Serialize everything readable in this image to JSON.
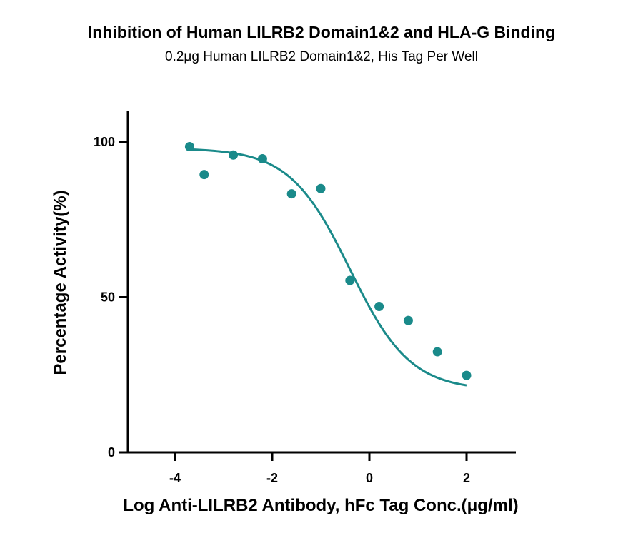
{
  "chart_data": {
    "type": "scatter",
    "title": "Inhibition of Human LILRB2 Domain1&2 and HLA-G Binding",
    "subtitle": "0.2μg Human LILRB2 Domain1&2, His Tag Per Well",
    "xlabel": "Log Anti-LILRB2 Antibody, hFc Tag Conc.(μg/ml)",
    "ylabel": "Percentage Activity(%)",
    "xlim": [
      -5,
      3
    ],
    "ylim": [
      0,
      110
    ],
    "x_ticks": [
      -4,
      -2,
      0,
      2
    ],
    "x_tick_labels": [
      "-4",
      "-2",
      "0",
      "2"
    ],
    "y_ticks": [
      0,
      50,
      100
    ],
    "y_tick_labels": [
      "0",
      "50",
      "100"
    ],
    "grid": false,
    "color": "#1a8a8a",
    "series": [
      {
        "points": [
          {
            "x": -3.7,
            "y": 98.5
          },
          {
            "x": -3.4,
            "y": 89.5
          },
          {
            "x": -2.8,
            "y": 95.8
          },
          {
            "x": -2.2,
            "y": 94.6
          },
          {
            "x": -1.6,
            "y": 83.3
          },
          {
            "x": -1.0,
            "y": 85.0
          },
          {
            "x": -0.4,
            "y": 55.4
          },
          {
            "x": 0.2,
            "y": 47.0
          },
          {
            "x": 0.8,
            "y": 42.5
          },
          {
            "x": 1.4,
            "y": 32.4
          },
          {
            "x": 2.0,
            "y": 24.8
          }
        ],
        "fit": {
          "model": "four-parameter logistic",
          "top": 98,
          "bottom": 20,
          "log_ic50": -0.4,
          "hill_slope": 0.7,
          "x_range": [
            -3.7,
            2.0
          ]
        }
      }
    ]
  }
}
